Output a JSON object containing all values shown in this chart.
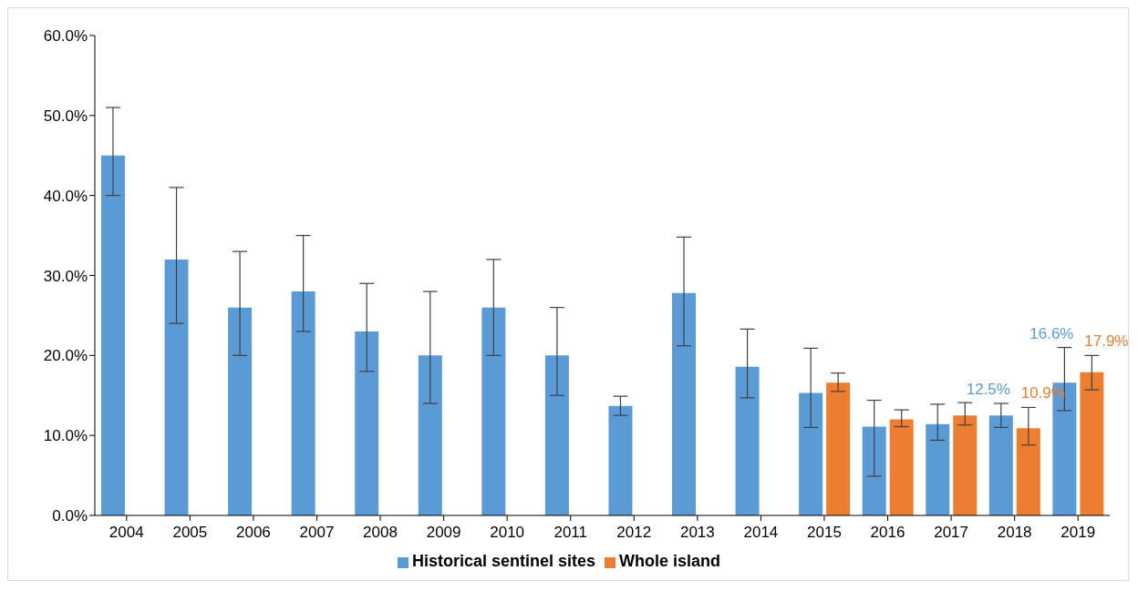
{
  "chart_data": {
    "type": "bar",
    "categories": [
      "2004",
      "2005",
      "2006",
      "2007",
      "2008",
      "2009",
      "2010",
      "2011",
      "2012",
      "2013",
      "2014",
      "2015",
      "2016",
      "2017",
      "2018",
      "2019"
    ],
    "series": [
      {
        "name": "Historical sentinel sites",
        "color": "#5b9bd5",
        "values": [
          45,
          32,
          26,
          28,
          23,
          20,
          26,
          20,
          13.7,
          27.8,
          18.6,
          15.3,
          11.1,
          11.4,
          12.5,
          16.6
        ],
        "errors": [
          [
            40,
            51
          ],
          [
            24,
            41
          ],
          [
            20,
            33
          ],
          [
            23,
            35
          ],
          [
            18,
            29
          ],
          [
            14,
            28
          ],
          [
            20,
            32
          ],
          [
            15,
            26
          ],
          [
            12.5,
            14.9
          ],
          [
            21.2,
            34.8
          ],
          [
            14.7,
            23.3
          ],
          [
            11,
            20.9
          ],
          [
            4.9,
            14.4
          ],
          [
            9.4,
            13.9
          ],
          [
            11,
            14
          ],
          [
            13.1,
            21
          ]
        ],
        "value_labels": [
          null,
          null,
          null,
          null,
          null,
          null,
          null,
          null,
          null,
          null,
          null,
          null,
          null,
          null,
          "12.5%",
          "16.6%"
        ]
      },
      {
        "name": "Whole island",
        "color": "#ed7d31",
        "values": [
          null,
          null,
          null,
          null,
          null,
          null,
          null,
          null,
          null,
          null,
          null,
          16.6,
          12,
          12.5,
          10.9,
          17.9
        ],
        "errors": [
          null,
          null,
          null,
          null,
          null,
          null,
          null,
          null,
          null,
          null,
          null,
          [
            15.5,
            17.8
          ],
          [
            11.1,
            13.2
          ],
          [
            11.3,
            14.1
          ],
          [
            8.8,
            13.5
          ],
          [
            15.7,
            20
          ]
        ],
        "value_labels": [
          null,
          null,
          null,
          null,
          null,
          null,
          null,
          null,
          null,
          null,
          null,
          null,
          null,
          null,
          "10.9%",
          "17.9%"
        ]
      }
    ],
    "ylim": [
      0,
      60
    ],
    "yticks": [
      {
        "value": 0,
        "label": "0.0%"
      },
      {
        "value": 10,
        "label": "10.0%"
      },
      {
        "value": 20,
        "label": "20.0%"
      },
      {
        "value": 30,
        "label": "30.0%"
      },
      {
        "value": 40,
        "label": "40.0%"
      },
      {
        "value": 50,
        "label": "50.0%"
      },
      {
        "value": 60,
        "label": "60.0%"
      }
    ],
    "grid": false,
    "legend": "bottom"
  }
}
